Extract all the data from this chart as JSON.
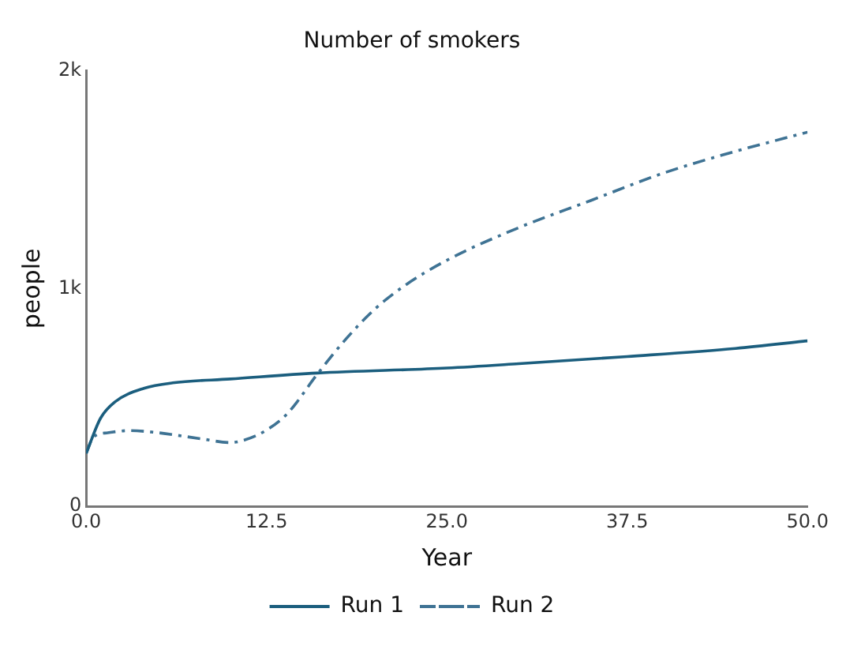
{
  "chart_data": {
    "type": "line",
    "title": "Number of smokers",
    "xlabel": "Year",
    "ylabel": "people",
    "xlim": [
      0,
      50
    ],
    "xticks": [
      {
        "value": 0,
        "label": "0.0"
      },
      {
        "value": 12.5,
        "label": "12.5"
      },
      {
        "value": 25,
        "label": "25.0"
      },
      {
        "value": 37.5,
        "label": "37.5"
      },
      {
        "value": 50,
        "label": "50.0"
      }
    ],
    "ylim": [
      0,
      2000
    ],
    "yticks": [
      {
        "value": 0,
        "label": "0"
      },
      {
        "value": 1000,
        "label": "1k"
      },
      {
        "value": 2000,
        "label": "2k"
      }
    ],
    "grid": false,
    "legend": "bottom",
    "marker": "none",
    "series": [
      {
        "name": "Run 1",
        "color": "#1b5e7e",
        "line_style": "solid",
        "x": [
          0,
          1,
          2,
          4,
          6,
          10,
          16,
          25,
          30,
          37.5,
          45,
          50
        ],
        "values": [
          243,
          405,
          480,
          542,
          567,
          585,
          612,
          635,
          655,
          688,
          725,
          760
        ]
      },
      {
        "name": "Run 2",
        "color": "#3f7394",
        "line_style": "dashed",
        "x": [
          0,
          0.5,
          1.5,
          3,
          5,
          8,
          10,
          11,
          12.5,
          14,
          16,
          18,
          20,
          22,
          25,
          30,
          35,
          40,
          45,
          50
        ],
        "values": [
          243,
          318,
          338,
          348,
          338,
          310,
          293,
          305,
          350,
          430,
          605,
          768,
          905,
          1010,
          1130,
          1280,
          1405,
          1530,
          1630,
          1718
        ]
      }
    ]
  }
}
